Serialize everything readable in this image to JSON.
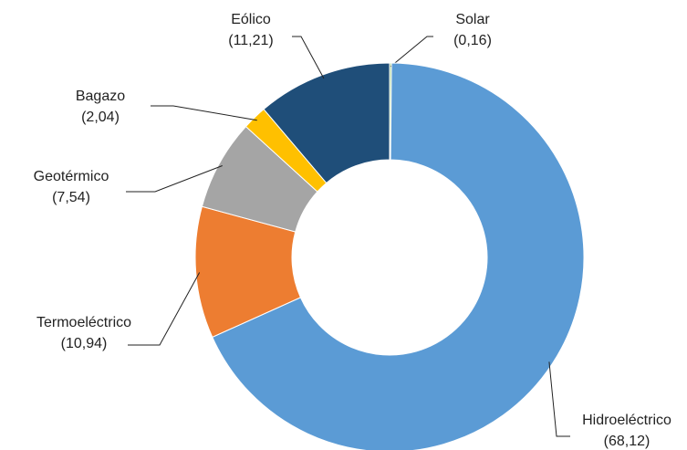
{
  "chart_data": {
    "type": "donut",
    "categories": [
      "Solar",
      "Hidroeléctrico",
      "Termoeléctrico",
      "Geotérmico",
      "Bagazo",
      "Eólico"
    ],
    "values": [
      0.16,
      68.12,
      10.94,
      7.54,
      2.04,
      11.21
    ],
    "value_labels": [
      "(0,16)",
      "(68,12)",
      "(10,94)",
      "(7,54)",
      "(2,04)",
      "(11,21)"
    ],
    "colors": [
      "#a9d18e",
      "#5b9bd5",
      "#ed7d31",
      "#a5a5a5",
      "#ffc000",
      "#1f4e79"
    ]
  }
}
